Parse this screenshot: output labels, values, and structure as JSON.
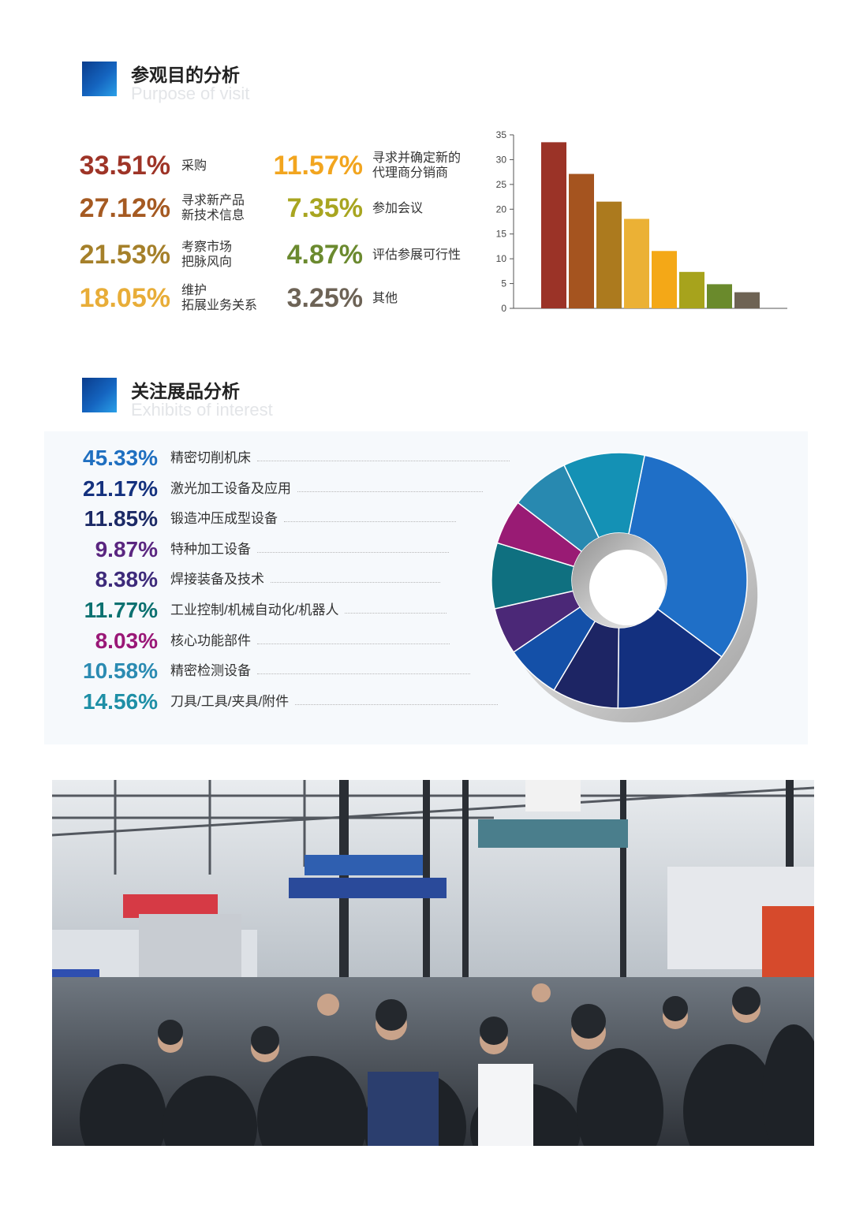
{
  "purpose": {
    "title_cn": "参观目的分析",
    "title_en": "Purpose of visit"
  },
  "exhibits": {
    "title_cn": "关注展品分析",
    "title_en": "Exhibits of interest"
  },
  "purpose_stats": [
    {
      "pct": "33.51%",
      "lines": [
        "采购"
      ],
      "color": "#9e3427"
    },
    {
      "pct": "27.12%",
      "lines": [
        "寻求新产品",
        "新技术信息"
      ],
      "color": "#a55a22"
    },
    {
      "pct": "21.53%",
      "lines": [
        "考察市场",
        "把脉风向"
      ],
      "color": "#a5802a"
    },
    {
      "pct": "18.05%",
      "lines": [
        "维护",
        "拓展业务关系"
      ],
      "color": "#e8ad38"
    },
    {
      "pct": "11.57%",
      "lines": [
        "寻求并确定新的",
        "代理商分销商"
      ],
      "color": "#f2a51f"
    },
    {
      "pct": "7.35%",
      "lines": [
        "参加会议"
      ],
      "color": "#a8a520"
    },
    {
      "pct": "4.87%",
      "lines": [
        "评估参展可行性"
      ],
      "color": "#6b8a2f"
    },
    {
      "pct": "3.25%",
      "lines": [
        "其他"
      ],
      "color": "#6d6356"
    }
  ],
  "exhibit_stats": [
    {
      "pct": "45.33%",
      "label": "精密切削机床",
      "color": "#1f6fc0"
    },
    {
      "pct": "21.17%",
      "label": "激光加工设备及应用",
      "color": "#14317e"
    },
    {
      "pct": "11.85%",
      "label": "锻造冲压成型设备",
      "color": "#1c2a66"
    },
    {
      "pct": "9.87%",
      "label": "特种加工设备",
      "color": "#5a2680"
    },
    {
      "pct": "8.38%",
      "label": "焊接装备及技术",
      "color": "#3d2a7a"
    },
    {
      "pct": "11.77%",
      "label": "工业控制/机械自动化/机器人",
      "color": "#0c7170"
    },
    {
      "pct": "8.03%",
      "label": "核心功能部件",
      "color": "#9a1877"
    },
    {
      "pct": "10.58%",
      "label": "精密检测设备",
      "color": "#2b8bb2"
    },
    {
      "pct": "14.56%",
      "label": "刀具/工具/夹具/附件",
      "color": "#1e8fa6"
    }
  ],
  "chart_data": [
    {
      "type": "bar",
      "values": [
        33.51,
        27.12,
        21.53,
        18.05,
        11.57,
        7.35,
        4.87,
        3.25
      ],
      "colors": [
        "#9b3327",
        "#a5541f",
        "#ac7a1e",
        "#ebb135",
        "#f4a817",
        "#a7a31c",
        "#6a8a2c",
        "#6e6354"
      ],
      "yticks": [
        "0",
        "5",
        "10",
        "15",
        "20",
        "25",
        "30",
        "35"
      ],
      "ylim": [
        0,
        35
      ],
      "grid": false
    },
    {
      "type": "pie",
      "values": [
        45.33,
        21.17,
        11.85,
        9.87,
        8.38,
        11.77,
        8.03,
        10.58,
        14.56
      ],
      "colors": [
        "#1f6fc7",
        "#13307f",
        "#1d2564",
        "#1450a8",
        "#4b2877",
        "#0f7080",
        "#991b74",
        "#2889b0",
        "#1491b5"
      ]
    }
  ]
}
